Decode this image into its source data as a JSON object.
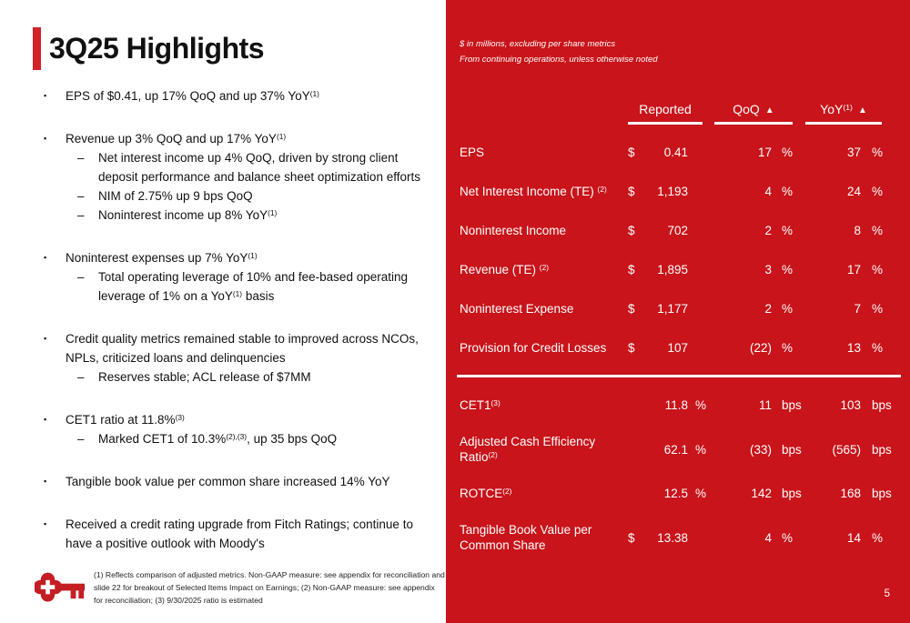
{
  "slide": {
    "page_number": "5"
  },
  "icons": {
    "bullet": "▪",
    "dash": "–",
    "triangle": "▲"
  },
  "colors": {
    "panel_red": "#C8141A",
    "accent_red": "#D2232A",
    "logo_red": "#C41E24",
    "text_dark": "#111111",
    "white": "#FFFFFF"
  },
  "left": {
    "title": "3Q25 Highlights",
    "bullets": [
      {
        "level": 1,
        "segments": [
          {
            "t": "EPS of $0.41, up 17% QoQ and up 37% YoY"
          },
          {
            "t": "(1)",
            "sup": true
          }
        ]
      },
      {
        "level": 1,
        "segments": [
          {
            "t": "Revenue up 3% QoQ and up 17% YoY"
          },
          {
            "t": "(1)",
            "sup": true
          }
        ]
      },
      {
        "level": 2,
        "segments": [
          {
            "t": "Net interest income up 4% QoQ, driven by strong client deposit performance and balance sheet optimization efforts"
          }
        ]
      },
      {
        "level": 2,
        "segments": [
          {
            "t": "NIM of 2.75% up 9 bps QoQ"
          }
        ]
      },
      {
        "level": 2,
        "segments": [
          {
            "t": "Noninterest income up 8% YoY"
          },
          {
            "t": "(1)",
            "sup": true
          }
        ]
      },
      {
        "level": 1,
        "segments": [
          {
            "t": "Noninterest expenses up 7% YoY"
          },
          {
            "t": "(1)",
            "sup": true
          }
        ]
      },
      {
        "level": 2,
        "segments": [
          {
            "t": "Total operating leverage of 10% and fee-based operating leverage of 1% on a YoY"
          },
          {
            "t": "(1)",
            "sup": true
          },
          {
            "t": " basis"
          }
        ]
      },
      {
        "level": 1,
        "segments": [
          {
            "t": "Credit quality metrics remained stable to improved across NCOs, NPLs, criticized loans and delinquencies"
          }
        ]
      },
      {
        "level": 2,
        "segments": [
          {
            "t": "Reserves stable; ACL release of $7MM"
          }
        ]
      },
      {
        "level": 1,
        "segments": [
          {
            "t": "CET1 ratio at 11.8%"
          },
          {
            "t": "(3)",
            "sup": true
          }
        ]
      },
      {
        "level": 2,
        "segments": [
          {
            "t": "Marked CET1 of 10.3%"
          },
          {
            "t": "(2),(3)",
            "sup": true
          },
          {
            "t": ", up 35 bps QoQ"
          }
        ]
      },
      {
        "level": 1,
        "segments": [
          {
            "t": "Tangible book value per common share increased 14% YoY"
          }
        ]
      },
      {
        "level": 1,
        "segments": [
          {
            "t": "Received a credit rating upgrade from Fitch Ratings; continue to have a positive outlook with Moody's"
          }
        ]
      }
    ],
    "footnote": "(1) Reflects comparison of adjusted metrics. Non-GAAP measure: see appendix for reconciliation and slide 22 for breakout of Selected Items Impact on Earnings; (2) Non-GAAP measure: see appendix for reconciliation; (3) 9/30/2025 ratio is estimated"
  },
  "table": {
    "note1": "$ in millions, excluding per share metrics",
    "note2": "From continuing operations, unless otherwise noted",
    "columns": [
      {
        "label": "Reported",
        "sup": "",
        "triangle": false
      },
      {
        "label": "QoQ",
        "sup": "",
        "triangle": true
      },
      {
        "label": "YoY",
        "sup": "(1)",
        "triangle": true
      }
    ],
    "sections": [
      {
        "rows": [
          {
            "label": [
              {
                "t": "EPS"
              }
            ],
            "dollar": "$",
            "reported": "0.41",
            "reported_unit": "",
            "qoq": "17",
            "qoq_unit": "%",
            "yoy": "37",
            "yoy_unit": "%"
          },
          {
            "label": [
              {
                "t": "Net Interest Income (TE) "
              },
              {
                "t": "(2)",
                "sup": true
              }
            ],
            "dollar": "$",
            "reported": "1,193",
            "reported_unit": "",
            "qoq": "4",
            "qoq_unit": "%",
            "yoy": "24",
            "yoy_unit": "%"
          },
          {
            "label": [
              {
                "t": "Noninterest Income"
              }
            ],
            "dollar": "$",
            "reported": "702",
            "reported_unit": "",
            "qoq": "2",
            "qoq_unit": "%",
            "yoy": "8",
            "yoy_unit": "%"
          },
          {
            "label": [
              {
                "t": "Revenue (TE) "
              },
              {
                "t": "(2)",
                "sup": true
              }
            ],
            "dollar": "$",
            "reported": "1,895",
            "reported_unit": "",
            "qoq": "3",
            "qoq_unit": "%",
            "yoy": "17",
            "yoy_unit": "%"
          },
          {
            "label": [
              {
                "t": "Noninterest Expense"
              }
            ],
            "dollar": "$",
            "reported": "1,177",
            "reported_unit": "",
            "qoq": "2",
            "qoq_unit": "%",
            "yoy": "7",
            "yoy_unit": "%"
          },
          {
            "label": [
              {
                "t": "Provision for Credit Losses"
              }
            ],
            "dollar": "$",
            "reported": "107",
            "reported_unit": "",
            "qoq": "(22)",
            "qoq_unit": "%",
            "yoy": "13",
            "yoy_unit": "%"
          }
        ]
      },
      {
        "rows": [
          {
            "label": [
              {
                "t": "CET1"
              },
              {
                "t": "(3)",
                "sup": true
              }
            ],
            "dollar": "",
            "reported": "11.8",
            "reported_unit": "%",
            "qoq": "11",
            "qoq_unit": "bps",
            "yoy": "103",
            "yoy_unit": "bps"
          },
          {
            "label": [
              {
                "t": "Adjusted Cash Efficiency Ratio"
              },
              {
                "t": "(2)",
                "sup": true
              }
            ],
            "dollar": "",
            "reported": "62.1",
            "reported_unit": "%",
            "qoq": "(33)",
            "qoq_unit": "bps",
            "yoy": "(565)",
            "yoy_unit": "bps",
            "tall": true
          },
          {
            "label": [
              {
                "t": "ROTCE"
              },
              {
                "t": "(2)",
                "sup": true
              }
            ],
            "dollar": "",
            "reported": "12.5",
            "reported_unit": "%",
            "qoq": "142",
            "qoq_unit": "bps",
            "yoy": "168",
            "yoy_unit": "bps"
          },
          {
            "label": [
              {
                "t": "Tangible Book Value per Common Share"
              }
            ],
            "dollar": "$",
            "reported": "13.38",
            "reported_unit": "",
            "qoq": "4",
            "qoq_unit": "%",
            "yoy": "14",
            "yoy_unit": "%",
            "tall": true
          }
        ]
      }
    ]
  }
}
